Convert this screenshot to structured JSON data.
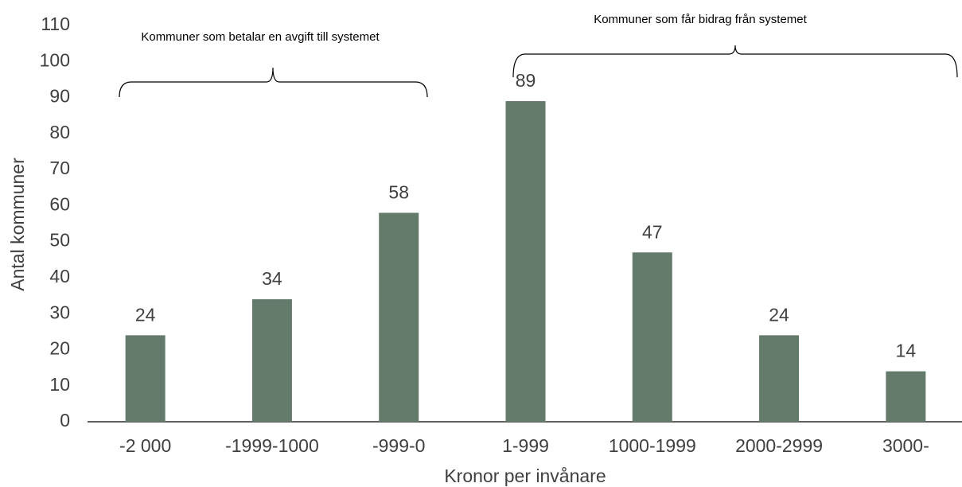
{
  "chart_data": {
    "type": "bar",
    "categories": [
      "-2 000",
      "-1999-1000",
      "-999-0",
      "1-999",
      "1000-1999",
      "2000-2999",
      "3000-"
    ],
    "values": [
      24,
      34,
      58,
      89,
      47,
      24,
      14
    ],
    "color": "#647a6b",
    "ylim": [
      0,
      110
    ],
    "yticks": [
      0,
      10,
      20,
      30,
      40,
      50,
      60,
      70,
      80,
      90,
      100,
      110
    ],
    "grid": false,
    "x_label": "Kronor per invånare",
    "y_label": "Antal kommuner",
    "annotations": [
      "Kommuner som betalar en avgift till systemet",
      "Kommuner som får bidrag från systemet"
    ]
  }
}
